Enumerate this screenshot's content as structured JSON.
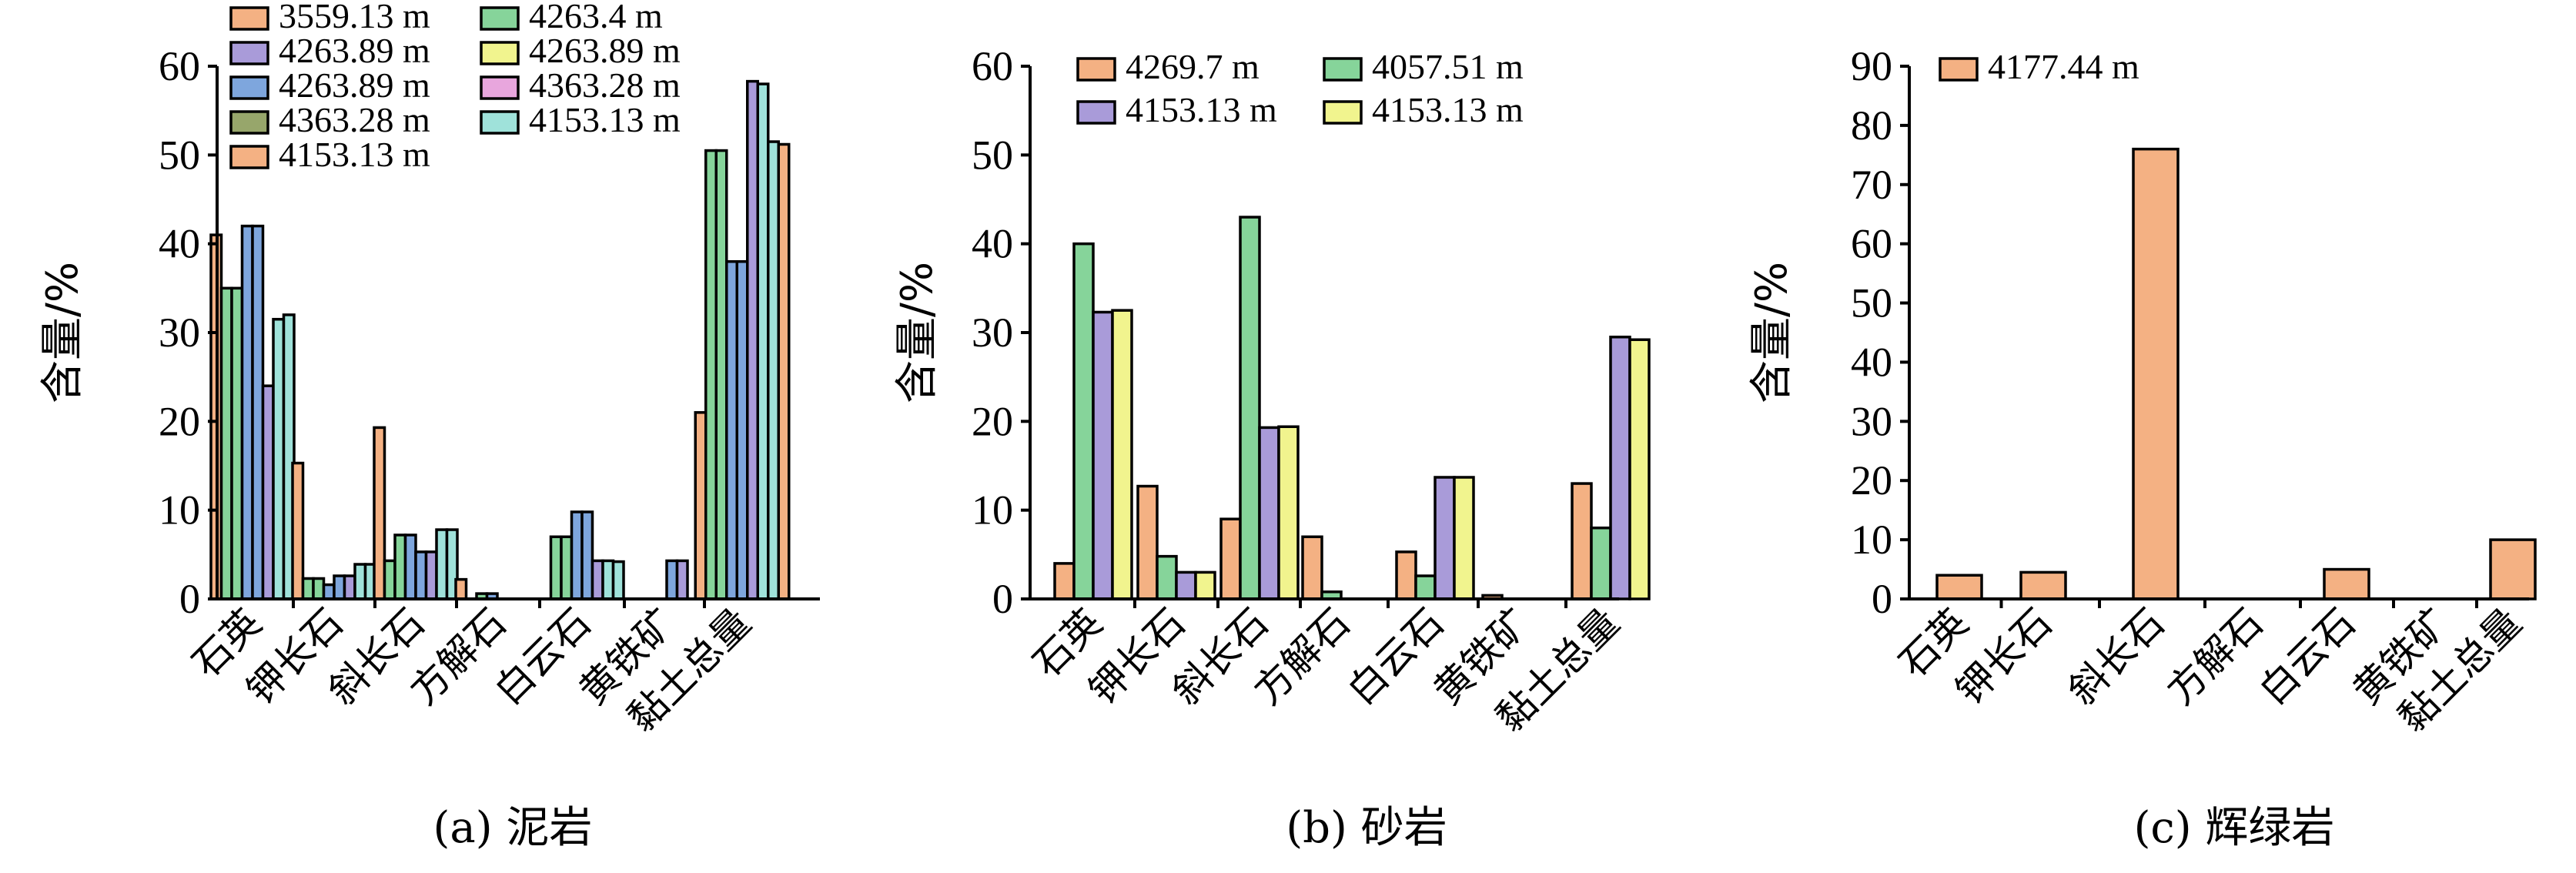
{
  "colors": {
    "orange": "#F4B183",
    "purple": "#A99BD9",
    "blue": "#7EA6DD",
    "olive": "#97A66B",
    "green": "#86D49A",
    "yellow": "#F1F48E",
    "pink": "#E8A6DD",
    "cyan": "#9FE2DA"
  },
  "chart_data": [
    {
      "type": "bar",
      "caption": "(a) 泥岩",
      "ylabel": "含量/%",
      "ylim": [
        0,
        60
      ],
      "yticks": [
        "0",
        "10",
        "20",
        "30",
        "40",
        "50",
        "60"
      ],
      "categories": [
        "石英",
        "钾长石",
        "斜长石",
        "方解石",
        "白云石",
        "黄铁矿",
        "黏土总量"
      ],
      "legend_columns": 2,
      "series": [
        {
          "name": "3559.13 m",
          "color": "orange",
          "values": [
            41,
            15.3,
            19.3,
            2.2,
            0,
            0,
            21
          ]
        },
        {
          "name": "4263.89 m",
          "color": "purple",
          "values": [
            0,
            0,
            0,
            0,
            0,
            0,
            0
          ]
        },
        {
          "name": "4263.89 m",
          "color": "blue",
          "values": [
            0,
            0,
            0,
            0,
            0,
            0,
            0
          ]
        },
        {
          "name": "4363.28 m",
          "color": "olive",
          "values": [
            0,
            0,
            0,
            0,
            0,
            0,
            0
          ]
        },
        {
          "name": "4153.13 m",
          "color": "orange",
          "values": [
            0,
            0,
            0,
            0,
            0,
            0,
            0
          ]
        },
        {
          "name": "4263.4 m",
          "color": "green",
          "values": [
            35,
            2.3,
            4.3,
            0,
            7,
            0,
            50.5
          ]
        },
        {
          "name": "4263.89 m",
          "color": "yellow",
          "values": [
            0,
            0,
            0,
            0,
            0,
            0,
            0
          ]
        },
        {
          "name": "4363.28 m",
          "color": "pink",
          "values": [
            0,
            0,
            0,
            0,
            0,
            0,
            0
          ]
        },
        {
          "name": "4153.13 m",
          "color": "cyan",
          "values": [
            0,
            0,
            0,
            0,
            0,
            0,
            0
          ]
        }
      ],
      "drawn_bars": [
        [
          {
            "c": "orange",
            "v": 41
          },
          {
            "c": "green",
            "v": 35
          },
          {
            "c": "green",
            "v": 35
          },
          {
            "c": "blue",
            "v": 42
          },
          {
            "c": "blue",
            "v": 42
          },
          {
            "c": "purple",
            "v": 24
          },
          {
            "c": "cyan",
            "v": 31.5
          },
          {
            "c": "cyan",
            "v": 32
          }
        ],
        [
          {
            "c": "orange",
            "v": 15.3
          },
          {
            "c": "green",
            "v": 2.3
          },
          {
            "c": "green",
            "v": 2.3
          },
          {
            "c": "blue",
            "v": 1.6
          },
          {
            "c": "blue",
            "v": 2.6
          },
          {
            "c": "purple",
            "v": 2.6
          },
          {
            "c": "cyan",
            "v": 3.9
          },
          {
            "c": "cyan",
            "v": 3.9
          }
        ],
        [
          {
            "c": "orange",
            "v": 19.3
          },
          {
            "c": "green",
            "v": 4.3
          },
          {
            "c": "green",
            "v": 7.2
          },
          {
            "c": "blue",
            "v": 7.2
          },
          {
            "c": "blue",
            "v": 5.3
          },
          {
            "c": "purple",
            "v": 5.3
          },
          {
            "c": "cyan",
            "v": 7.8
          },
          {
            "c": "cyan",
            "v": 7.8
          }
        ],
        [
          {
            "c": "orange",
            "v": 2.2
          },
          {
            "c": "green",
            "v": 0
          },
          {
            "c": "green",
            "v": 0.6
          },
          {
            "c": "blue",
            "v": 0.6
          },
          {
            "c": "blue",
            "v": 0
          },
          {
            "c": "purple",
            "v": 0
          },
          {
            "c": "cyan",
            "v": 0
          },
          {
            "c": "cyan",
            "v": 0
          }
        ],
        [
          {
            "c": "orange",
            "v": 0
          },
          {
            "c": "green",
            "v": 7
          },
          {
            "c": "green",
            "v": 7
          },
          {
            "c": "blue",
            "v": 9.8
          },
          {
            "c": "blue",
            "v": 9.8
          },
          {
            "c": "purple",
            "v": 4.3
          },
          {
            "c": "cyan",
            "v": 4.3
          },
          {
            "c": "cyan",
            "v": 4.2
          }
        ],
        [
          {
            "c": "orange",
            "v": 0
          },
          {
            "c": "green",
            "v": 0
          },
          {
            "c": "green",
            "v": 0
          },
          {
            "c": "blue",
            "v": 0
          },
          {
            "c": "blue",
            "v": 4.3
          },
          {
            "c": "purple",
            "v": 4.3
          },
          {
            "c": "cyan",
            "v": 0
          },
          {
            "c": "cyan",
            "v": 0
          }
        ],
        [
          {
            "c": "orange",
            "v": 21
          },
          {
            "c": "green",
            "v": 50.5
          },
          {
            "c": "green",
            "v": 50.5
          },
          {
            "c": "blue",
            "v": 38
          },
          {
            "c": "blue",
            "v": 38
          },
          {
            "c": "purple",
            "v": 58.3
          },
          {
            "c": "cyan",
            "v": 58
          },
          {
            "c": "cyan",
            "v": 51.5
          },
          {
            "c": "orange",
            "v": 51.2
          }
        ]
      ]
    },
    {
      "type": "bar",
      "caption": "(b) 砂岩",
      "ylabel": "含量/%",
      "ylim": [
        0,
        60
      ],
      "yticks": [
        "0",
        "10",
        "20",
        "30",
        "40",
        "50",
        "60"
      ],
      "categories": [
        "石英",
        "钾长石",
        "斜长石",
        "方解石",
        "白云石",
        "黄铁矿",
        "黏土总量"
      ],
      "legend_columns": 2,
      "series": [
        {
          "name": "4269.7 m",
          "color": "orange",
          "values": [
            4,
            12.7,
            9,
            7,
            5.3,
            0.4,
            13
          ]
        },
        {
          "name": "4057.51 m",
          "color": "green",
          "values": [
            40,
            4.8,
            43,
            0.8,
            2.6,
            0,
            8
          ]
        },
        {
          "name": "4153.13 m",
          "color": "purple",
          "values": [
            32.3,
            3,
            19.3,
            0,
            13.7,
            0,
            29.5
          ]
        },
        {
          "name": "4153.13 m",
          "color": "yellow",
          "values": [
            32.5,
            3,
            19.4,
            0,
            13.7,
            0,
            29.2
          ]
        }
      ]
    },
    {
      "type": "bar",
      "caption": "(c) 辉绿岩",
      "ylabel": "含量/%",
      "ylim": [
        0,
        90
      ],
      "yticks": [
        "0",
        "10",
        "20",
        "30",
        "40",
        "50",
        "60",
        "70",
        "80",
        "90"
      ],
      "categories": [
        "石英",
        "钾长石",
        "斜长石",
        "方解石",
        "白云石",
        "黄铁矿",
        "黏土总量"
      ],
      "legend_columns": 1,
      "series": [
        {
          "name": "4177.44 m",
          "color": "orange",
          "values": [
            4,
            4.5,
            76,
            0,
            5,
            0,
            10
          ]
        }
      ]
    }
  ]
}
